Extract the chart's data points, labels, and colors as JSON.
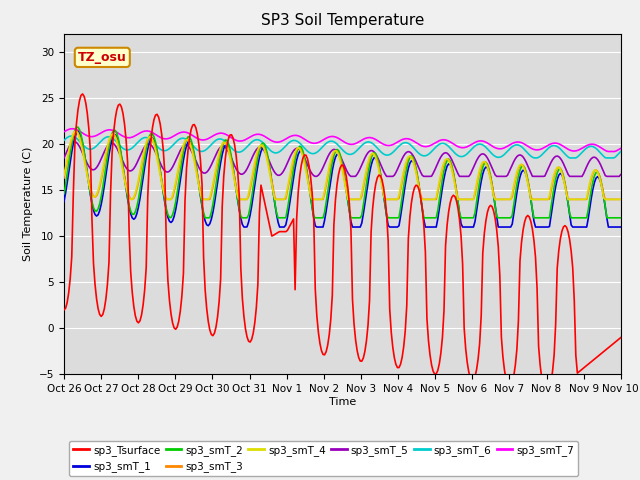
{
  "title": "SP3 Soil Temperature",
  "xlabel": "Time",
  "ylabel": "Soil Temperature (C)",
  "ylim": [
    -5,
    32
  ],
  "yticks": [
    -5,
    0,
    5,
    10,
    15,
    20,
    25,
    30
  ],
  "fig_bg": "#f0f0f0",
  "plot_bg": "#dcdcdc",
  "annotation_text": "TZ_osu",
  "annotation_color": "#cc0000",
  "annotation_bg": "#ffffcc",
  "annotation_border": "#cc8800",
  "legend_entries": [
    "sp3_Tsurface",
    "sp3_smT_1",
    "sp3_smT_2",
    "sp3_smT_3",
    "sp3_smT_4",
    "sp3_smT_5",
    "sp3_smT_6",
    "sp3_smT_7"
  ],
  "line_colors": [
    "#ff0000",
    "#0000dd",
    "#00cc00",
    "#ff8800",
    "#dddd00",
    "#9900bb",
    "#00cccc",
    "#ff00ff"
  ],
  "xtick_labels": [
    "Oct 26",
    "Oct 27",
    "Oct 28",
    "Oct 29",
    "Oct 30",
    "Oct 31",
    "Nov 1",
    "Nov 2",
    "Nov 3",
    "Nov 4",
    "Nov 5",
    "Nov 6",
    "Nov 7",
    "Nov 8",
    "Nov 9",
    "Nov 10"
  ],
  "num_points": 360
}
